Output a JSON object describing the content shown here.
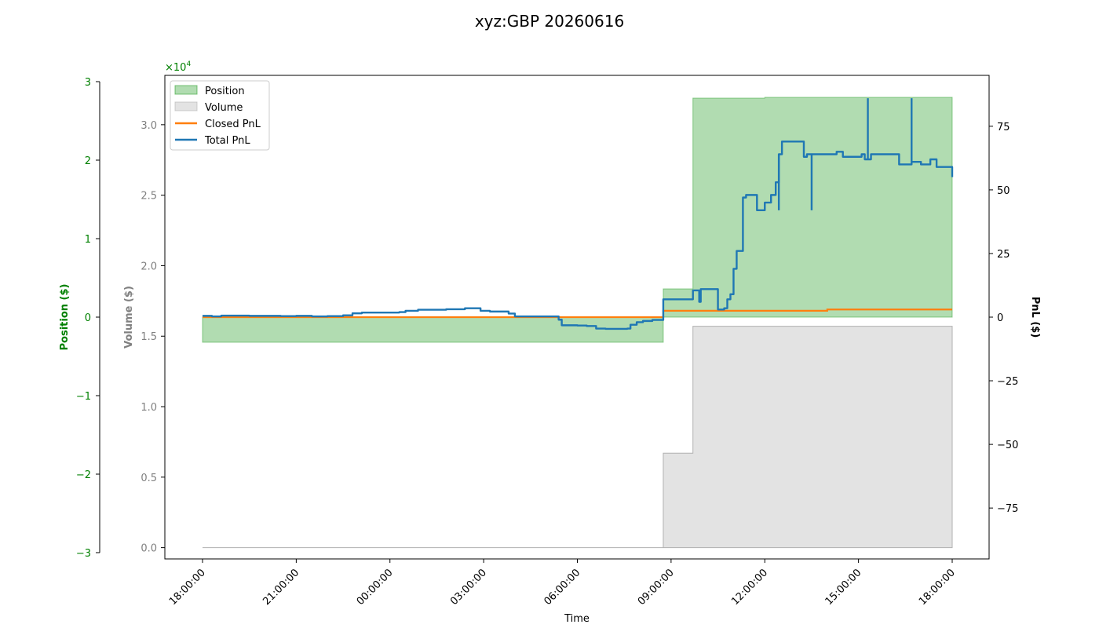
{
  "chart_data": {
    "type": "area",
    "title": "xyz:GBP 20260616",
    "xlabel": "Time",
    "x_ticks": [
      "18:00:00",
      "21:00:00",
      "00:00:00",
      "03:00:00",
      "06:00:00",
      "09:00:00",
      "12:00:00",
      "15:00:00",
      "18:00:00"
    ],
    "x_domain_hours": [
      0,
      24
    ],
    "axes": {
      "position": {
        "label": "Position ($)",
        "color": "#008000",
        "ylim": [
          -3,
          3
        ],
        "ticks": [
          -3,
          -2,
          -1,
          0,
          1,
          2,
          3
        ],
        "tick_labels": [
          "−3",
          "−2",
          "−1",
          "0",
          "1",
          "2",
          "3"
        ],
        "scale_note": "×10^4"
      },
      "volume": {
        "label": "Volume ($)",
        "color": "#808080",
        "ylim": [
          -0.08,
          3.35
        ],
        "ticks": [
          0.0,
          0.5,
          1.0,
          1.5,
          2.0,
          2.5,
          3.0
        ],
        "tick_labels": [
          "0.0",
          "0.5",
          "1.0",
          "1.5",
          "2.0",
          "2.5",
          "3.0"
        ],
        "scale_note": "×10^4"
      },
      "pnl": {
        "label": "PnL ($)",
        "color": "#000000",
        "ylim": [
          -95,
          95
        ],
        "ticks": [
          -75,
          -50,
          -25,
          0,
          25,
          50,
          75
        ],
        "tick_labels": [
          "−75",
          "−50",
          "−25",
          "0",
          "25",
          "50",
          "75"
        ]
      }
    },
    "scale_label": {
      "prefix": "×10",
      "exp": "4"
    },
    "legend": {
      "placement": "top-left",
      "entries": [
        {
          "name": "Position",
          "kind": "patch",
          "color": "#2ca02c"
        },
        {
          "name": "Volume",
          "kind": "patch",
          "color": "#c8c8c8"
        },
        {
          "name": "Closed PnL",
          "kind": "line",
          "color": "#ff7f0e"
        },
        {
          "name": "Total PnL",
          "kind": "line",
          "color": "#1f77b4"
        }
      ]
    },
    "series": [
      {
        "name": "Position",
        "axis": "position",
        "color": "#2ca02c",
        "step": true,
        "points": [
          [
            0,
            -0.32
          ],
          [
            14.75,
            -0.32
          ],
          [
            14.75,
            0.36
          ],
          [
            15.7,
            0.36
          ],
          [
            15.7,
            2.79
          ],
          [
            18,
            2.8
          ],
          [
            24,
            2.8
          ]
        ]
      },
      {
        "name": "Volume",
        "axis": "volume",
        "color": "#c8c8c8",
        "step": true,
        "points": [
          [
            0,
            0
          ],
          [
            14.75,
            0
          ],
          [
            14.75,
            0.67
          ],
          [
            15.7,
            0.67
          ],
          [
            15.7,
            1.57
          ],
          [
            24,
            1.57
          ]
        ]
      },
      {
        "name": "Closed PnL",
        "axis": "pnl",
        "color": "#ff7f0e",
        "points": [
          [
            0,
            0
          ],
          [
            14.75,
            0
          ],
          [
            14.75,
            2.5
          ],
          [
            20,
            2.5
          ],
          [
            20,
            3
          ],
          [
            24,
            3
          ]
        ]
      },
      {
        "name": "Total PnL",
        "axis": "pnl",
        "color": "#1f77b4",
        "step": true,
        "points": [
          [
            0,
            0.5
          ],
          [
            0.3,
            0.3
          ],
          [
            0.6,
            0.6
          ],
          [
            1.5,
            0.5
          ],
          [
            2.5,
            0.4
          ],
          [
            3,
            0.5
          ],
          [
            3.5,
            0.3
          ],
          [
            4,
            0.4
          ],
          [
            4.5,
            0.7
          ],
          [
            4.8,
            1.5
          ],
          [
            5.1,
            1.8
          ],
          [
            6.3,
            2.0
          ],
          [
            6.5,
            2.5
          ],
          [
            6.9,
            2.9
          ],
          [
            7.8,
            3.1
          ],
          [
            8.4,
            3.5
          ],
          [
            8.9,
            2.5
          ],
          [
            9.2,
            2.2
          ],
          [
            9.8,
            1.4
          ],
          [
            10,
            0.3
          ],
          [
            11.2,
            0.3
          ],
          [
            11.4,
            -1.0
          ],
          [
            11.5,
            -3.2
          ],
          [
            12.0,
            -3.3
          ],
          [
            12.3,
            -3.5
          ],
          [
            12.6,
            -4.5
          ],
          [
            12.9,
            -4.6
          ],
          [
            13.6,
            -4.5
          ],
          [
            13.7,
            -3.0
          ],
          [
            13.9,
            -2.0
          ],
          [
            14.1,
            -1.5
          ],
          [
            14.4,
            -1.1
          ],
          [
            14.75,
            7.0
          ],
          [
            15.6,
            7.0
          ],
          [
            15.7,
            10.5
          ],
          [
            15.9,
            6.0
          ],
          [
            15.95,
            11.0
          ],
          [
            16.45,
            11.0
          ],
          [
            16.5,
            3.0
          ],
          [
            16.7,
            3.5
          ],
          [
            16.8,
            7.0
          ],
          [
            16.9,
            9.0
          ],
          [
            17.0,
            19.0
          ],
          [
            17.1,
            26.0
          ],
          [
            17.3,
            47.0
          ],
          [
            17.4,
            48.0
          ],
          [
            17.75,
            42.0
          ],
          [
            18.0,
            45.0
          ],
          [
            18.2,
            48.0
          ],
          [
            18.35,
            53.0
          ],
          [
            18.45,
            64.0
          ],
          [
            18.55,
            69.0
          ],
          [
            19.2,
            69.0
          ],
          [
            19.25,
            63.0
          ],
          [
            19.35,
            64.0
          ],
          [
            20.2,
            64.0
          ],
          [
            20.3,
            65.0
          ],
          [
            20.5,
            63.0
          ],
          [
            21.1,
            64.0
          ],
          [
            21.2,
            62.0
          ],
          [
            21.4,
            64.0
          ],
          [
            21.7,
            64.0
          ],
          [
            22.1,
            64.0
          ],
          [
            22.3,
            60.0
          ],
          [
            22.7,
            61.0
          ],
          [
            23.0,
            60.0
          ],
          [
            23.3,
            62.0
          ],
          [
            23.5,
            59.0
          ],
          [
            24.0,
            55.0
          ]
        ],
        "spikes": [
          [
            18.45,
            42.0
          ],
          [
            19.5,
            42.0
          ],
          [
            21.3,
            86.0
          ],
          [
            22.7,
            86.0
          ]
        ]
      }
    ]
  }
}
